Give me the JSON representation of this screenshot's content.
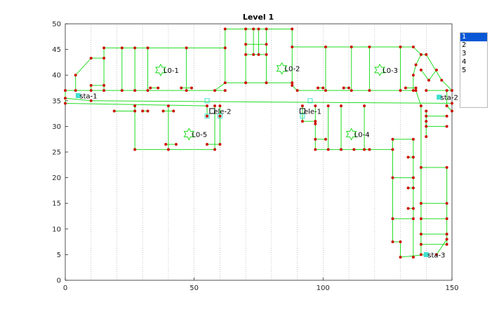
{
  "figure": {
    "title": "Level 1",
    "x_ticks": [
      "0",
      "50",
      "100",
      "150"
    ],
    "y_ticks": [
      "0",
      "5",
      "10",
      "15",
      "20",
      "25",
      "30",
      "35",
      "40",
      "45",
      "50"
    ]
  },
  "colors": {
    "wall": "#22dd22",
    "node": "#cc1100",
    "station": "#40e0d0",
    "grid": "#999999",
    "list_selected": "#0a58d6"
  },
  "level_selector": {
    "items": [
      "1",
      "2",
      "3",
      "4",
      "5"
    ],
    "selected": "1"
  },
  "rooms": [
    {
      "label": "L0-1",
      "x": 37,
      "y": 41
    },
    {
      "label": "L0-2",
      "x": 84,
      "y": 41.3
    },
    {
      "label": "L0-3",
      "x": 122,
      "y": 41
    },
    {
      "label": "L0-4",
      "x": 111,
      "y": 28.5
    },
    {
      "label": "L0-5",
      "x": 48,
      "y": 28.5
    }
  ],
  "stations": [
    {
      "label": "sta-1",
      "x": 5,
      "y": 36
    },
    {
      "label": "sta-2",
      "x": 145,
      "y": 35.7
    },
    {
      "label": "sta-3",
      "x": 140,
      "y": 5
    }
  ],
  "elevators": [
    {
      "label": "ele-1",
      "x": 92,
      "y": 33
    },
    {
      "label": "ele-2",
      "x": 57,
      "y": 33
    }
  ]
}
